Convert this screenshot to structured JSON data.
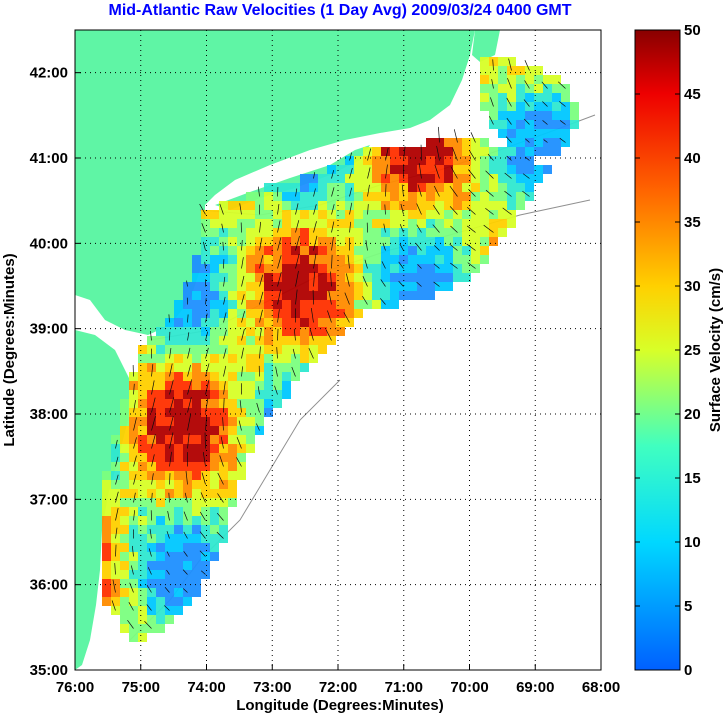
{
  "title": "Mid-Atlantic Raw Velocities (1 Day Avg) 2009/03/24 0400 GMT",
  "x_axis": {
    "label": "Longitude (Degrees:Minutes)",
    "ticks": [
      "76:00",
      "75:00",
      "74:00",
      "73:00",
      "72:00",
      "71:00",
      "70:00",
      "69:00",
      "68:00"
    ]
  },
  "y_axis": {
    "label": "Latitude (Degrees:Minutes)",
    "ticks": [
      "35:00",
      "36:00",
      "37:00",
      "38:00",
      "39:00",
      "40:00",
      "41:00",
      "42:00"
    ]
  },
  "colorbar": {
    "label": "Surface Velocity (cm/s)",
    "ticks": [
      "0",
      "5",
      "10",
      "15",
      "20",
      "25",
      "30",
      "35",
      "40",
      "45",
      "50"
    ],
    "range": [
      0,
      50
    ],
    "colormap": "jet"
  },
  "map": {
    "lon_range": [
      -76,
      -68
    ],
    "lat_range": [
      35,
      42.5
    ],
    "land_color": "#5ff5a5",
    "grid": "dotted",
    "vector_color": "#000000"
  }
}
